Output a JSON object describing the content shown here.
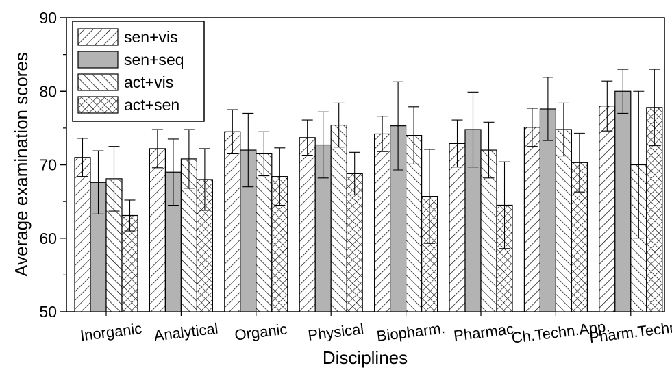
{
  "chart_data": {
    "type": "bar",
    "title": "",
    "xlabel": "Disciplines",
    "ylabel": "Average examination scores",
    "ylim": [
      50,
      90
    ],
    "yticks": [
      50,
      60,
      70,
      80,
      90
    ],
    "grid": false,
    "legend_position": "top-left",
    "categories": [
      "Inorganic",
      "Analytical",
      "Organic",
      "Physical",
      "Biopharm.",
      "Pharmac.",
      "Ch.Techn.App.",
      "Pharm.Techn."
    ],
    "series": [
      {
        "name": "sen+vis",
        "pattern": "forward-diagonal",
        "values": [
          71.0,
          72.2,
          74.5,
          73.7,
          74.2,
          72.9,
          75.1,
          78.0
        ],
        "errors": [
          2.6,
          2.6,
          3.0,
          2.4,
          2.4,
          3.2,
          2.6,
          3.4
        ]
      },
      {
        "name": "sen+seq",
        "pattern": "solid-gray",
        "values": [
          67.6,
          69.0,
          72.0,
          72.7,
          75.3,
          74.8,
          77.6,
          80.0
        ],
        "errors": [
          4.3,
          4.5,
          5.0,
          4.5,
          6.0,
          5.1,
          4.3,
          3.0
        ]
      },
      {
        "name": "act+vis",
        "pattern": "back-diagonal",
        "values": [
          68.1,
          70.8,
          71.5,
          75.4,
          74.0,
          72.0,
          74.8,
          70.0
        ],
        "errors": [
          4.4,
          4.0,
          3.0,
          3.0,
          3.9,
          3.8,
          3.6,
          10.0
        ]
      },
      {
        "name": "act+sen",
        "pattern": "crosshatch",
        "values": [
          63.1,
          68.0,
          68.4,
          68.8,
          65.7,
          64.5,
          70.3,
          77.8
        ],
        "errors": [
          2.1,
          4.2,
          3.9,
          2.9,
          6.4,
          5.9,
          4.0,
          5.2
        ]
      }
    ]
  }
}
